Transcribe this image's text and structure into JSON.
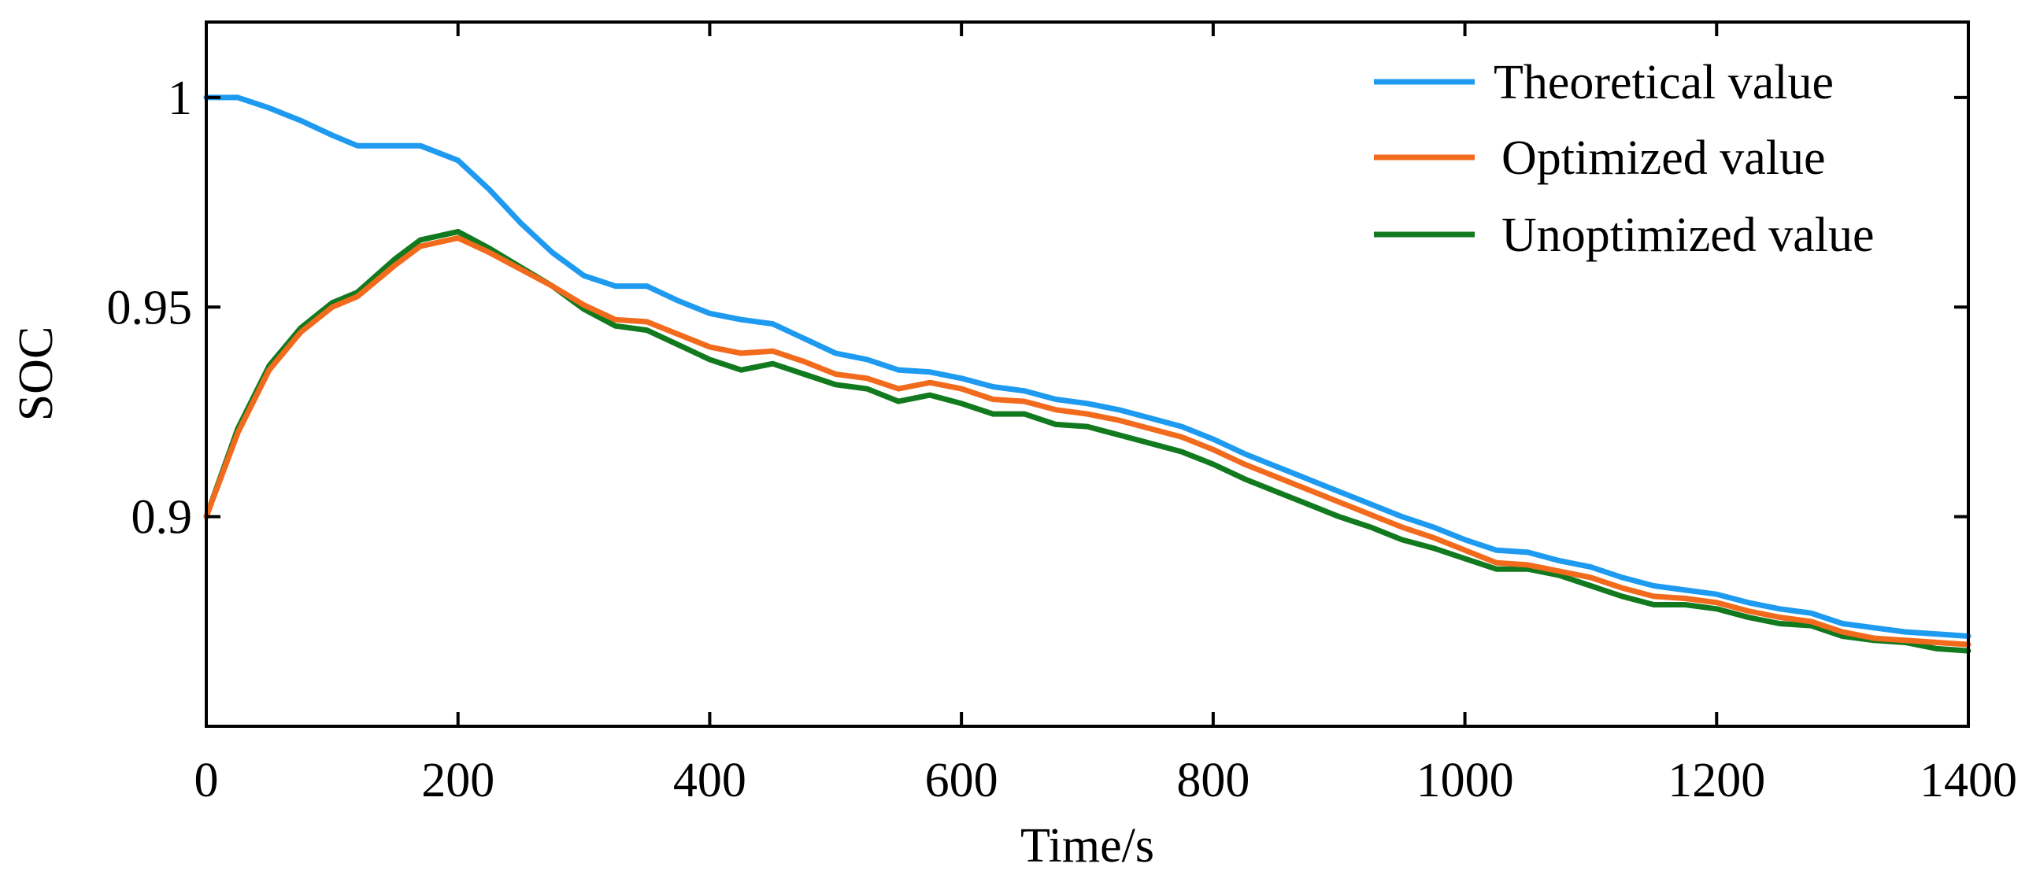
{
  "chart_data": {
    "type": "line",
    "title": "",
    "xlabel": "Time/s",
    "ylabel": "SOC",
    "xlim": [
      0,
      1400
    ],
    "ylim": [
      0.85,
      1.018
    ],
    "grid": false,
    "legend_position": "top-right",
    "x_ticks": [
      0,
      200,
      400,
      600,
      800,
      1000,
      1200,
      1400
    ],
    "x_tick_labels": [
      "0",
      "200",
      "400",
      "600",
      "800",
      "1000",
      "1200",
      "1400"
    ],
    "y_ticks": [
      0.9,
      0.95,
      1.0
    ],
    "y_tick_labels": [
      "0.9",
      "0.95",
      "1"
    ],
    "x": [
      0,
      25,
      50,
      75,
      100,
      120,
      150,
      170,
      200,
      225,
      250,
      275,
      300,
      325,
      350,
      375,
      400,
      425,
      450,
      475,
      500,
      525,
      550,
      575,
      600,
      625,
      650,
      675,
      700,
      725,
      750,
      775,
      800,
      825,
      850,
      875,
      900,
      925,
      950,
      975,
      1000,
      1025,
      1050,
      1075,
      1100,
      1125,
      1150,
      1175,
      1200,
      1225,
      1250,
      1275,
      1300,
      1325,
      1350,
      1375,
      1400
    ],
    "series": [
      {
        "name": "Theoretical value",
        "color": "#1e9bf0",
        "values": [
          1.0,
          1.0,
          0.9975,
          0.9945,
          0.991,
          0.9885,
          0.9885,
          0.9885,
          0.985,
          0.978,
          0.97,
          0.963,
          0.9575,
          0.955,
          0.955,
          0.9515,
          0.9485,
          0.947,
          0.946,
          0.9425,
          0.939,
          0.9375,
          0.935,
          0.9345,
          0.933,
          0.931,
          0.93,
          0.928,
          0.927,
          0.9255,
          0.9235,
          0.9215,
          0.9185,
          0.915,
          0.912,
          0.909,
          0.906,
          0.903,
          0.9,
          0.8975,
          0.8945,
          0.892,
          0.8915,
          0.8895,
          0.888,
          0.8855,
          0.8835,
          0.8825,
          0.8815,
          0.8795,
          0.878,
          0.877,
          0.8745,
          0.8735,
          0.8725,
          0.872,
          0.8715
        ]
      },
      {
        "name": "Optimized value",
        "color": "#f26b1d",
        "values": [
          0.9,
          0.92,
          0.935,
          0.944,
          0.95,
          0.9525,
          0.96,
          0.9645,
          0.9665,
          0.963,
          0.959,
          0.955,
          0.9505,
          0.947,
          0.9465,
          0.9435,
          0.9405,
          0.939,
          0.9395,
          0.937,
          0.934,
          0.933,
          0.9305,
          0.932,
          0.9305,
          0.928,
          0.9275,
          0.9255,
          0.9245,
          0.923,
          0.921,
          0.919,
          0.916,
          0.9125,
          0.9095,
          0.9065,
          0.9035,
          0.9005,
          0.8975,
          0.895,
          0.892,
          0.889,
          0.8885,
          0.887,
          0.8855,
          0.883,
          0.881,
          0.8805,
          0.8795,
          0.8775,
          0.876,
          0.875,
          0.8725,
          0.871,
          0.8705,
          0.87,
          0.8695
        ]
      },
      {
        "name": "Unoptimized value",
        "color": "#127a1e",
        "values": [
          0.9,
          0.921,
          0.936,
          0.945,
          0.951,
          0.9535,
          0.9615,
          0.966,
          0.968,
          0.964,
          0.9595,
          0.955,
          0.9495,
          0.9455,
          0.9445,
          0.941,
          0.9375,
          0.935,
          0.9365,
          0.934,
          0.9315,
          0.9305,
          0.9275,
          0.929,
          0.927,
          0.9245,
          0.9245,
          0.922,
          0.9215,
          0.9195,
          0.9175,
          0.9155,
          0.9125,
          0.909,
          0.906,
          0.903,
          0.9,
          0.8975,
          0.8945,
          0.8925,
          0.89,
          0.8875,
          0.8875,
          0.886,
          0.8835,
          0.881,
          0.879,
          0.879,
          0.878,
          0.876,
          0.8745,
          0.874,
          0.8715,
          0.8705,
          0.87,
          0.8685,
          0.868
        ]
      }
    ]
  }
}
